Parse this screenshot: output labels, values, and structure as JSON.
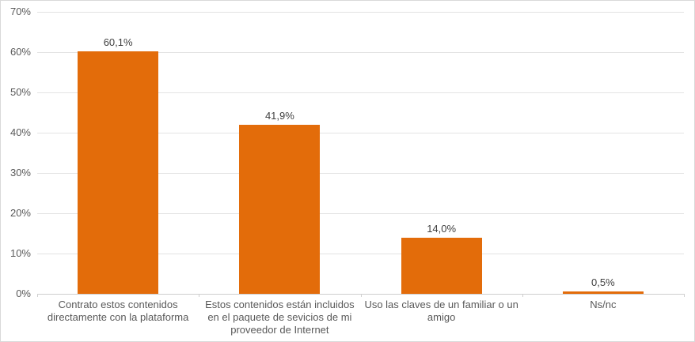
{
  "chart_data": {
    "type": "bar",
    "title": "",
    "xlabel": "",
    "ylabel": "",
    "categories": [
      "Contrato estos contenidos directamente con la plataforma",
      "Estos contenidos están incluidos en el paquete de sevicios de mi proveedor de Internet",
      "Uso las claves de un familiar o un amigo",
      "Ns/nc"
    ],
    "values": [
      60.1,
      41.9,
      14.0,
      0.5
    ],
    "value_labels": [
      "60,1%",
      "41,9%",
      "14,0%",
      "0,5%"
    ],
    "y_ticks": [
      "0%",
      "10%",
      "20%",
      "30%",
      "40%",
      "50%",
      "60%",
      "70%"
    ],
    "ylim": [
      0,
      70
    ],
    "grid": true,
    "legend": false,
    "bar_color": "#E36C0A",
    "grid_color": "#E3E3E3",
    "axis_color": "#CFCFCF",
    "axis_label_color": "#595959",
    "data_label_color": "#404040",
    "frame_border_color": "#D9D9D9",
    "background_color": "#FFFFFF"
  }
}
